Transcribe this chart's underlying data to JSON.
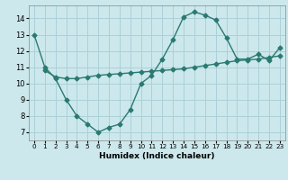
{
  "line1_x": [
    0,
    1,
    2,
    3,
    4,
    5,
    6,
    7,
    8,
    9,
    10,
    11,
    12,
    13,
    14,
    15,
    16,
    17,
    18,
    19,
    20,
    21,
    22,
    23
  ],
  "line1_y": [
    13,
    11,
    10.3,
    9,
    8,
    7.5,
    7.0,
    7.3,
    7.5,
    8.4,
    10.0,
    10.5,
    11.5,
    12.7,
    14.1,
    14.4,
    14.2,
    13.9,
    12.8,
    11.5,
    11.5,
    11.8,
    11.4,
    12.2
  ],
  "line2_x": [
    1,
    2,
    3,
    4,
    5,
    6,
    7,
    8,
    9,
    10,
    11,
    12,
    13,
    14,
    15,
    16,
    17,
    18,
    19,
    20,
    21,
    22,
    23
  ],
  "line2_y": [
    10.8,
    10.4,
    10.3,
    10.3,
    10.4,
    10.5,
    10.55,
    10.6,
    10.65,
    10.7,
    10.75,
    10.8,
    10.85,
    10.9,
    11.0,
    11.1,
    11.2,
    11.3,
    11.4,
    11.45,
    11.5,
    11.6,
    11.7
  ],
  "line_color": "#2a7a72",
  "bg_color": "#cce8ec",
  "grid_color": "#aad0d8",
  "xlabel": "Humidex (Indice chaleur)",
  "xlim": [
    -0.5,
    23.5
  ],
  "ylim": [
    6.5,
    14.8
  ],
  "yticks": [
    7,
    8,
    9,
    10,
    11,
    12,
    13,
    14
  ],
  "xticks": [
    0,
    1,
    2,
    3,
    4,
    5,
    6,
    7,
    8,
    9,
    10,
    11,
    12,
    13,
    14,
    15,
    16,
    17,
    18,
    19,
    20,
    21,
    22,
    23
  ],
  "marker": "D",
  "markersize": 2.5,
  "linewidth": 1.0
}
